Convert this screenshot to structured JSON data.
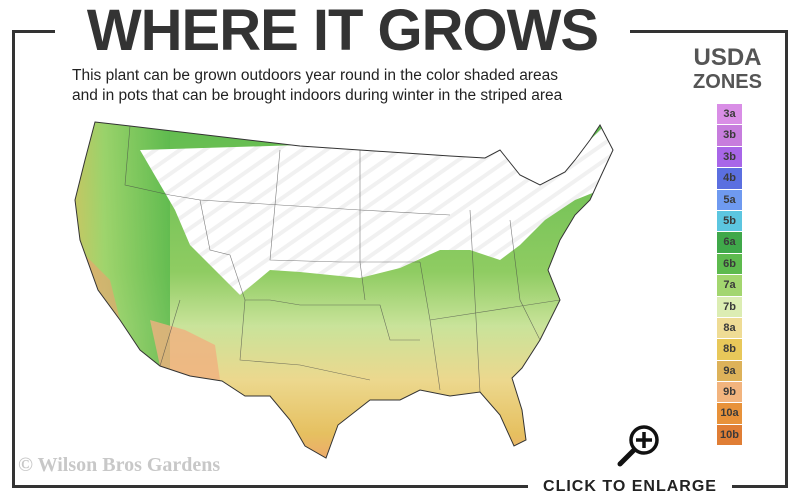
{
  "header": {
    "title": "WHERE IT GROWS",
    "subtitle_line1": "This plant can be grown outdoors year round in the color shaded areas",
    "subtitle_line2": "and in pots that can be brought indoors during winter in the striped area"
  },
  "legend": {
    "title_line1": "USDA",
    "title_line2": "ZONES",
    "zones": [
      {
        "label": "3a",
        "color": "#d98ee6"
      },
      {
        "label": "3b",
        "color": "#c77ddd"
      },
      {
        "label": "3b",
        "color": "#a866e8"
      },
      {
        "label": "4b",
        "color": "#5b6fe0"
      },
      {
        "label": "5a",
        "color": "#6f9af0"
      },
      {
        "label": "5b",
        "color": "#5cc6e0"
      },
      {
        "label": "6a",
        "color": "#3fa84a"
      },
      {
        "label": "6b",
        "color": "#5dba4e"
      },
      {
        "label": "7a",
        "color": "#a3d66f"
      },
      {
        "label": "7b",
        "color": "#dcedb3"
      },
      {
        "label": "8a",
        "color": "#efdc95"
      },
      {
        "label": "8b",
        "color": "#e8c85a"
      },
      {
        "label": "9a",
        "color": "#ddb25a"
      },
      {
        "label": "9b",
        "color": "#f2b47e"
      },
      {
        "label": "10a",
        "color": "#e8923a"
      },
      {
        "label": "10b",
        "color": "#e07e35"
      }
    ]
  },
  "footer": {
    "copyright": "© Wilson Bros Gardens",
    "enlarge_label": "CLICK TO ENLARGE",
    "enlarge_icon": "zoom-in-magnifier-icon"
  }
}
